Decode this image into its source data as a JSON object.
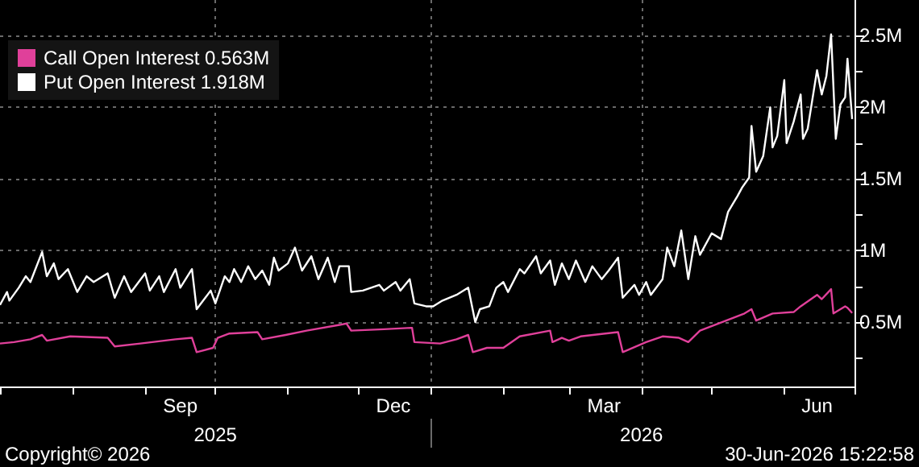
{
  "chart_data": {
    "type": "line",
    "annotations": [
      "Copyright© 2026",
      "30-Jun-2026 15:22:58"
    ],
    "series": [
      {
        "name": "Call Open Interest 0.563M",
        "color": "#e0409a",
        "x": [
          "2025-07-01",
          "2025-07-07",
          "2025-07-14",
          "2025-07-19",
          "2025-07-21",
          "2025-07-31",
          "2025-08-16",
          "2025-08-19",
          "2025-08-30",
          "2025-09-14",
          "2025-09-21",
          "2025-09-23",
          "2025-09-30",
          "2025-10-02",
          "2025-10-07",
          "2025-10-19",
          "2025-10-21",
          "2025-10-31",
          "2025-11-09",
          "2025-11-23",
          "2025-11-26",
          "2025-11-28",
          "2025-12-12",
          "2025-12-24",
          "2025-12-25",
          "2026-01-05",
          "2026-01-12",
          "2026-01-17",
          "2026-01-19",
          "2026-01-25",
          "2026-02-01",
          "2026-02-08",
          "2026-02-21",
          "2026-02-22",
          "2026-02-26",
          "2026-03-01",
          "2026-03-06",
          "2026-03-22",
          "2026-03-24",
          "2026-04-03",
          "2026-04-10",
          "2026-04-17",
          "2026-04-21",
          "2026-04-26",
          "2026-05-15",
          "2026-05-18",
          "2026-05-20",
          "2026-05-27",
          "2026-06-05",
          "2026-06-08",
          "2026-06-15",
          "2026-06-17",
          "2026-06-21",
          "2026-06-22",
          "2026-06-27",
          "2026-06-28",
          "2026-06-30"
        ],
        "values": [
          0.35,
          0.36,
          0.38,
          0.41,
          0.37,
          0.4,
          0.39,
          0.33,
          0.35,
          0.38,
          0.39,
          0.29,
          0.32,
          0.39,
          0.42,
          0.43,
          0.38,
          0.41,
          0.44,
          0.48,
          0.49,
          0.44,
          0.45,
          0.46,
          0.36,
          0.35,
          0.38,
          0.41,
          0.29,
          0.32,
          0.32,
          0.4,
          0.44,
          0.36,
          0.39,
          0.37,
          0.4,
          0.43,
          0.29,
          0.36,
          0.4,
          0.39,
          0.36,
          0.44,
          0.56,
          0.59,
          0.51,
          0.56,
          0.57,
          0.61,
          0.69,
          0.66,
          0.73,
          0.56,
          0.61,
          0.6,
          0.563
        ]
      },
      {
        "name": "Put Open Interest 1.918M",
        "color": "#ffffff",
        "x": [
          "2025-07-01",
          "2025-07-04",
          "2025-07-05",
          "2025-07-09",
          "2025-07-12",
          "2025-07-14",
          "2025-07-19",
          "2025-07-21",
          "2025-07-24",
          "2025-07-26",
          "2025-07-30",
          "2025-08-03",
          "2025-08-07",
          "2025-08-10",
          "2025-08-16",
          "2025-08-19",
          "2025-08-23",
          "2025-08-26",
          "2025-09-01",
          "2025-09-03",
          "2025-09-07",
          "2025-09-09",
          "2025-09-14",
          "2025-09-16",
          "2025-09-21",
          "2025-09-23",
          "2025-09-29",
          "2025-10-01",
          "2025-10-05",
          "2025-10-07",
          "2025-10-09",
          "2025-10-12",
          "2025-10-15",
          "2025-10-18",
          "2025-10-21",
          "2025-10-24",
          "2025-10-26",
          "2025-10-28",
          "2025-11-01",
          "2025-11-04",
          "2025-11-07",
          "2025-11-11",
          "2025-11-14",
          "2025-11-18",
          "2025-11-21",
          "2025-11-23",
          "2025-11-27",
          "2025-11-28",
          "2025-12-03",
          "2025-12-10",
          "2025-12-12",
          "2025-12-17",
          "2025-12-19",
          "2025-12-23",
          "2025-12-25",
          "2025-12-30",
          "2026-01-02",
          "2026-01-06",
          "2026-01-12",
          "2026-01-17",
          "2026-01-20",
          "2026-01-22",
          "2026-01-26",
          "2026-01-29",
          "2026-02-01",
          "2026-02-03",
          "2026-02-08",
          "2026-02-10",
          "2026-02-15",
          "2026-02-17",
          "2026-02-21",
          "2026-02-23",
          "2026-02-26",
          "2026-03-01",
          "2026-03-04",
          "2026-03-08",
          "2026-03-11",
          "2026-03-15",
          "2026-03-18",
          "2026-03-22",
          "2026-03-24",
          "2026-03-29",
          "2026-03-31",
          "2026-04-03",
          "2026-04-05",
          "2026-04-10",
          "2026-04-12",
          "2026-04-15",
          "2026-04-18",
          "2026-04-21",
          "2026-04-24",
          "2026-04-26",
          "2026-05-01",
          "2026-05-05",
          "2026-05-08",
          "2026-05-12",
          "2026-05-14",
          "2026-05-17",
          "2026-05-18",
          "2026-05-20",
          "2026-05-23",
          "2026-05-26",
          "2026-05-27",
          "2026-05-29",
          "2026-06-01",
          "2026-06-02",
          "2026-06-05",
          "2026-06-08",
          "2026-06-09",
          "2026-06-11",
          "2026-06-15",
          "2026-06-17",
          "2026-06-19",
          "2026-06-21",
          "2026-06-23",
          "2026-06-25",
          "2026-06-27",
          "2026-06-28",
          "2026-06-30"
        ],
        "values": [
          0.62,
          0.71,
          0.65,
          0.74,
          0.82,
          0.78,
          0.99,
          0.82,
          0.91,
          0.8,
          0.87,
          0.71,
          0.82,
          0.78,
          0.84,
          0.67,
          0.82,
          0.71,
          0.84,
          0.72,
          0.82,
          0.71,
          0.87,
          0.74,
          0.87,
          0.59,
          0.72,
          0.63,
          0.82,
          0.78,
          0.87,
          0.78,
          0.89,
          0.8,
          0.86,
          0.76,
          0.95,
          0.86,
          0.91,
          1.02,
          0.86,
          0.96,
          0.8,
          0.95,
          0.78,
          0.89,
          0.89,
          0.71,
          0.72,
          0.76,
          0.72,
          0.78,
          0.72,
          0.8,
          0.63,
          0.61,
          0.61,
          0.65,
          0.69,
          0.74,
          0.5,
          0.59,
          0.61,
          0.74,
          0.78,
          0.71,
          0.87,
          0.84,
          0.96,
          0.84,
          0.93,
          0.76,
          0.91,
          0.8,
          0.93,
          0.78,
          0.89,
          0.8,
          0.86,
          0.95,
          0.67,
          0.76,
          0.69,
          0.78,
          0.69,
          0.8,
          1.02,
          0.89,
          1.14,
          0.8,
          1.1,
          0.97,
          1.12,
          1.08,
          1.27,
          1.38,
          1.44,
          1.51,
          1.87,
          1.55,
          1.66,
          2.0,
          1.72,
          1.8,
          2.19,
          1.75,
          1.9,
          2.09,
          1.78,
          1.85,
          2.26,
          2.09,
          2.22,
          2.51,
          1.78,
          2.02,
          2.07,
          2.34,
          1.918
        ]
      }
    ],
    "xlim": [
      "2025-07-01",
      "2026-07-01"
    ],
    "xticks": [
      {
        "value": "2025-07-01",
        "label": null
      },
      {
        "value": "2025-08-01",
        "label": null
      },
      {
        "value": "2025-09-01",
        "label": null
      },
      {
        "value": "2025-09-16",
        "label": "Sep"
      },
      {
        "value": "2025-10-01",
        "label": null
      },
      {
        "value": "2025-11-01",
        "label": null
      },
      {
        "value": "2025-12-01",
        "label": null
      },
      {
        "value": "2025-12-16",
        "label": "Dec"
      },
      {
        "value": "2026-01-01",
        "label": null
      },
      {
        "value": "2026-02-01",
        "label": null
      },
      {
        "value": "2026-03-01",
        "label": null
      },
      {
        "value": "2026-03-16",
        "label": "Mar"
      },
      {
        "value": "2026-04-01",
        "label": null
      },
      {
        "value": "2026-05-01",
        "label": null
      },
      {
        "value": "2026-06-01",
        "label": null
      },
      {
        "value": "2026-06-15",
        "label": "Jun"
      },
      {
        "value": "2026-07-01",
        "label": null
      }
    ],
    "x2lim": [
      "2025-07-01",
      "2026-07-01"
    ],
    "x2ticks": [
      {
        "value": "2025-10-01",
        "label": "2025"
      },
      {
        "value": "2026-01-01",
        "label": null
      },
      {
        "value": "2026-04-01",
        "label": "2026"
      },
      {
        "value": "2026-07-01",
        "label": null
      }
    ],
    "ylim": [
      0.05,
      2.75
    ],
    "yticks": [
      {
        "value": 0.25,
        "label": null
      },
      {
        "value": 0.5,
        "label": "0.5M"
      },
      {
        "value": 0.75,
        "label": null
      },
      {
        "value": 1,
        "label": "1M"
      },
      {
        "value": 1.25,
        "label": null
      },
      {
        "value": 1.5,
        "label": "1.5M"
      },
      {
        "value": 1.75,
        "label": null
      },
      {
        "value": 2,
        "label": "2M"
      },
      {
        "value": 2.25,
        "label": null
      },
      {
        "value": 2.5,
        "label": "2.5M"
      }
    ],
    "grid": true,
    "legend": "top left",
    "marker": "none",
    "line_style": "solid"
  }
}
